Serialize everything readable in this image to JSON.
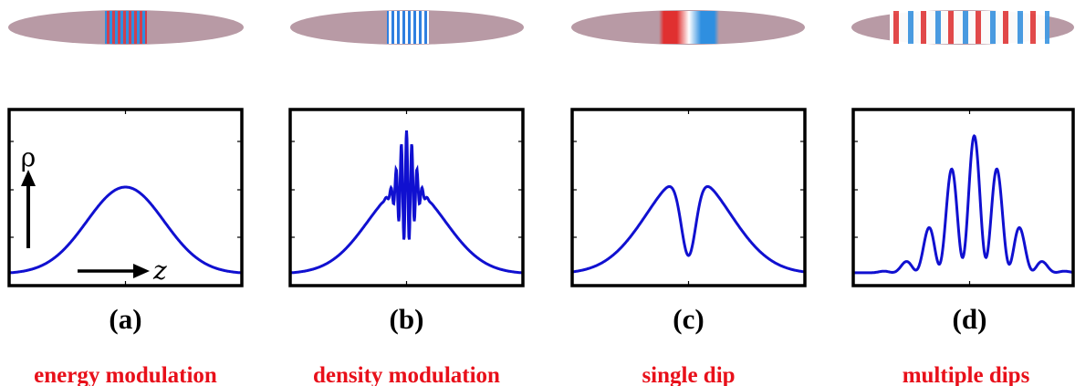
{
  "panels": [
    {
      "label": "(a)",
      "caption": "energy modulation"
    },
    {
      "label": "(b)",
      "caption": "density modulation"
    },
    {
      "label": "(c)",
      "caption": "single dip"
    },
    {
      "label": "(d)",
      "caption": "multiple dips"
    }
  ],
  "axis_labels": {
    "y": "ρ",
    "x": "z"
  }
}
